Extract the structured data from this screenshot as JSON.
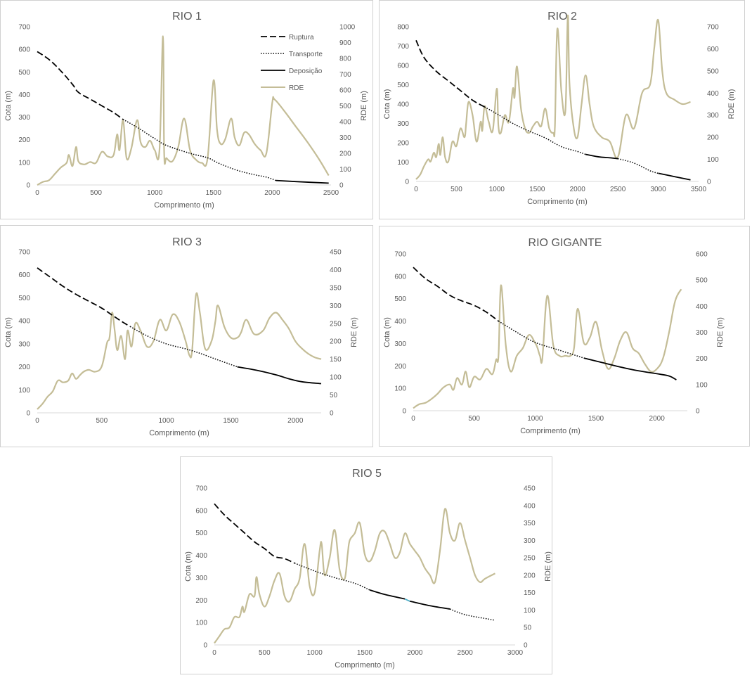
{
  "legend": {
    "ruptura": "Ruptura",
    "transporte": "Transporte",
    "deposicao": "Deposição",
    "rde": "RDE"
  },
  "colors": {
    "cota": "#000000",
    "rde": "#c4bd97",
    "accent": "#4bacc6"
  },
  "chart_data": [
    {
      "type": "line",
      "title": "RIO 1",
      "xlabel": "Comprimento (m)",
      "ylabel": "Cota (m)",
      "y2label": "RDE (m)",
      "xlim": [
        0,
        2500
      ],
      "xticks": [
        0,
        500,
        1000,
        1500,
        2000,
        2500
      ],
      "ylim": [
        0,
        700
      ],
      "yticks": [
        0,
        100,
        200,
        300,
        400,
        500,
        600,
        700
      ],
      "y2lim": [
        0,
        1000
      ],
      "y2ticks": [
        0,
        100,
        200,
        300,
        400,
        500,
        600,
        700,
        800,
        900,
        1000
      ],
      "legend_position": "top-right",
      "series": [
        {
          "name": "Ruptura",
          "style": "dash",
          "x": [
            0,
            100,
            200,
            300,
            350,
            450,
            550,
            650,
            730
          ],
          "y": [
            590,
            555,
            505,
            445,
            410,
            380,
            350,
            320,
            290
          ]
        },
        {
          "name": "Transporte",
          "style": "dot",
          "x": [
            730,
            850,
            1000,
            1100,
            1300,
            1450,
            1550,
            1700,
            1850,
            1950,
            2030
          ],
          "y": [
            290,
            255,
            205,
            175,
            140,
            120,
            95,
            65,
            45,
            35,
            20
          ]
        },
        {
          "name": "Deposição",
          "style": "solid",
          "x": [
            2030,
            2200,
            2480
          ],
          "y": [
            20,
            15,
            8
          ]
        },
        {
          "name": "RDE",
          "style": "rde",
          "axis": "y2",
          "x": [
            0,
            50,
            100,
            150,
            200,
            250,
            270,
            300,
            330,
            350,
            400,
            450,
            500,
            550,
            600,
            650,
            680,
            700,
            730,
            760,
            800,
            850,
            880,
            920,
            960,
            1000,
            1040,
            1070,
            1080,
            1100,
            1150,
            1200,
            1250,
            1300,
            1350,
            1400,
            1450,
            1500,
            1530,
            1560,
            1600,
            1650,
            1680,
            1720,
            1760,
            1800,
            1850,
            1900,
            1950,
            2000,
            2020,
            2100,
            2200,
            2300,
            2400,
            2480
          ],
          "y": [
            0,
            20,
            30,
            70,
            110,
            140,
            190,
            120,
            240,
            150,
            130,
            145,
            140,
            210,
            180,
            190,
            320,
            220,
            410,
            170,
            230,
            410,
            270,
            240,
            280,
            220,
            220,
            940,
            200,
            170,
            150,
            240,
            420,
            220,
            160,
            140,
            170,
            660,
            350,
            260,
            290,
            420,
            300,
            250,
            330,
            320,
            260,
            220,
            200,
            520,
            540,
            470,
            370,
            270,
            160,
            60
          ]
        }
      ]
    },
    {
      "type": "line",
      "title": "RIO 2",
      "xlabel": "Comprimento (m)",
      "ylabel": "Cota (m)",
      "y2label": "RDE (m)",
      "xlim": [
        0,
        3500
      ],
      "xticks": [
        0,
        500,
        1000,
        1500,
        2000,
        2500,
        3000,
        3500
      ],
      "ylim": [
        0,
        800
      ],
      "yticks": [
        0,
        100,
        200,
        300,
        400,
        500,
        600,
        700,
        800
      ],
      "y2lim": [
        0,
        700
      ],
      "y2ticks": [
        0,
        100,
        200,
        300,
        400,
        500,
        600,
        700
      ],
      "series": [
        {
          "name": "Ruptura",
          "style": "dash",
          "x": [
            0,
            100,
            250,
            400,
            550,
            700,
            850
          ],
          "y": [
            730,
            640,
            570,
            520,
            470,
            420,
            385
          ]
        },
        {
          "name": "Transporte",
          "style": "dot",
          "x": [
            850,
            1000,
            1200,
            1400,
            1600,
            1800,
            2000,
            2100
          ],
          "y": [
            385,
            350,
            300,
            260,
            225,
            180,
            155,
            140
          ]
        },
        {
          "name": "Deposição",
          "style": "solid",
          "x": [
            2100,
            2250,
            2400,
            2500
          ],
          "y": [
            140,
            128,
            122,
            118
          ]
        },
        {
          "name": "Transporte",
          "style": "dot",
          "x": [
            2500,
            2700,
            2900,
            3000
          ],
          "y": [
            118,
            95,
            55,
            42
          ]
        },
        {
          "name": "Deposição",
          "style": "solid",
          "x": [
            3000,
            3200,
            3400
          ],
          "y": [
            42,
            25,
            8
          ]
        }
      ]
    },
    {
      "type": "line",
      "title": "RIO 3",
      "xlabel": "Comprimento (m)",
      "ylabel": "Cota (m)",
      "y2label": "RDE (m)",
      "xlim": [
        0,
        2200
      ],
      "xticks": [
        0,
        500,
        1000,
        1500,
        2000
      ],
      "ylim": [
        0,
        700
      ],
      "yticks": [
        0,
        100,
        200,
        300,
        400,
        500,
        600,
        700
      ],
      "y2lim": [
        0,
        450
      ],
      "y2ticks": [
        0,
        50,
        100,
        150,
        200,
        250,
        300,
        350,
        400,
        450
      ],
      "series": [
        {
          "name": "Ruptura",
          "style": "dash",
          "x": [
            0,
            100,
            200,
            300,
            400,
            500,
            580,
            660,
            720
          ],
          "y": [
            630,
            590,
            550,
            515,
            485,
            455,
            425,
            395,
            375
          ]
        },
        {
          "name": "Transporte",
          "style": "dot",
          "x": [
            720,
            850,
            1000,
            1200,
            1400,
            1550
          ],
          "y": [
            375,
            335,
            300,
            270,
            230,
            200
          ]
        },
        {
          "name": "Deposição",
          "style": "solid",
          "x": [
            1550,
            1700,
            1850,
            1950,
            2050,
            2200
          ],
          "y": [
            200,
            185,
            165,
            148,
            135,
            127
          ]
        }
      ]
    },
    {
      "type": "line",
      "title": "RIO GIGANTE",
      "xlabel": "Comprimento (m)",
      "ylabel": "Cota (m)",
      "y2label": "RDE (m)",
      "xlim": [
        0,
        2250
      ],
      "xticks": [
        0,
        500,
        1000,
        1500,
        2000
      ],
      "ylim": [
        0,
        700
      ],
      "yticks": [
        0,
        100,
        200,
        300,
        400,
        500,
        600,
        700
      ],
      "y2lim": [
        0,
        600
      ],
      "y2ticks": [
        0,
        100,
        200,
        300,
        400,
        500,
        600
      ],
      "series": [
        {
          "name": "Ruptura",
          "style": "dash",
          "x": [
            0,
            100,
            200,
            300,
            400,
            500,
            600,
            700
          ],
          "y": [
            640,
            590,
            555,
            515,
            490,
            470,
            440,
            400
          ]
        },
        {
          "name": "Transporte",
          "style": "dot",
          "x": [
            700,
            850,
            1000,
            1200,
            1400
          ],
          "y": [
            400,
            350,
            305,
            270,
            235
          ]
        },
        {
          "name": "Deposição",
          "style": "solid",
          "x": [
            1400,
            1550,
            1700,
            1850,
            2000,
            2100,
            2160
          ],
          "y": [
            235,
            215,
            195,
            178,
            165,
            155,
            138
          ]
        }
      ]
    },
    {
      "type": "line",
      "title": "RIO 5",
      "xlabel": "Comprimento (m)",
      "ylabel": "Cota (m)",
      "y2label": "RDE (m)",
      "xlim": [
        0,
        3000
      ],
      "xticks": [
        0,
        500,
        1000,
        1500,
        2000,
        2500,
        3000
      ],
      "ylim": [
        0,
        700
      ],
      "yticks": [
        0,
        100,
        200,
        300,
        400,
        500,
        600,
        700
      ],
      "y2lim": [
        0,
        450
      ],
      "y2ticks": [
        0,
        50,
        100,
        150,
        200,
        250,
        300,
        350,
        400,
        450
      ],
      "series": [
        {
          "name": "Ruptura",
          "style": "dash",
          "x": [
            0,
            100,
            200,
            300,
            400,
            500,
            600,
            700,
            800
          ],
          "y": [
            630,
            580,
            540,
            500,
            460,
            430,
            395,
            385,
            365
          ]
        },
        {
          "name": "Transporte",
          "style": "dot",
          "x": [
            800,
            1000,
            1200,
            1400,
            1550
          ],
          "y": [
            365,
            330,
            300,
            275,
            245
          ]
        },
        {
          "name": "Deposição",
          "style": "solid",
          "x": [
            1550,
            1700,
            1850,
            1900
          ],
          "y": [
            245,
            225,
            210,
            205
          ]
        },
        {
          "name": "",
          "style": "accent",
          "x": [
            1900,
            1950
          ],
          "y": [
            205,
            195
          ]
        },
        {
          "name": "Deposição",
          "style": "solid",
          "x": [
            1950,
            2150,
            2350
          ],
          "y": [
            195,
            175,
            160
          ]
        },
        {
          "name": "Transporte",
          "style": "dot",
          "x": [
            2350,
            2500,
            2700,
            2800
          ],
          "y": [
            160,
            135,
            118,
            110
          ]
        }
      ]
    }
  ]
}
